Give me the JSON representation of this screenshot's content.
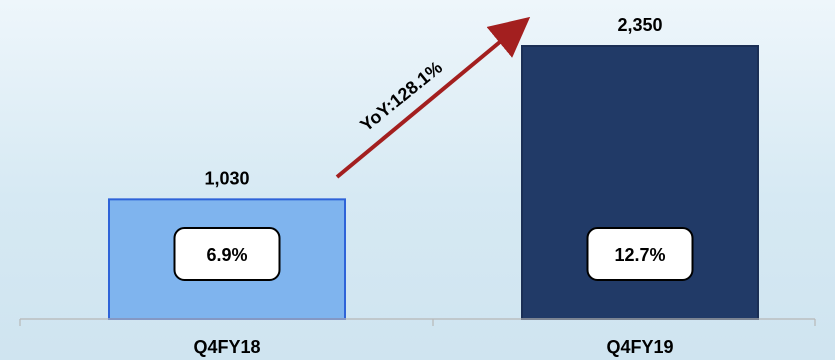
{
  "chart_data": {
    "type": "bar",
    "categories": [
      "Q4FY18",
      "Q4FY19"
    ],
    "values": [
      1030,
      2350
    ],
    "value_labels": [
      "1,030",
      "2,350"
    ],
    "inner_labels": [
      "6.9%",
      "12.7%"
    ],
    "annotation": "YoY:128.1%",
    "title": "",
    "xlabel": "",
    "ylabel": "",
    "ylim": [
      0,
      2350
    ],
    "grid": false,
    "legend": "none",
    "colors": [
      "#7fb4ee",
      "#213a67"
    ],
    "annotation_color": "#a31f1f"
  }
}
